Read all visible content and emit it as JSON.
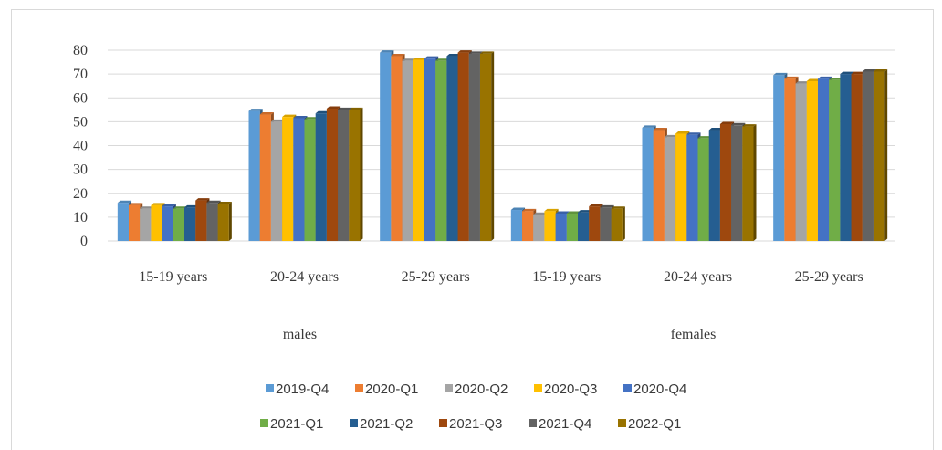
{
  "chart_data": {
    "type": "bar",
    "title": "",
    "xlabel": "",
    "ylabel": "",
    "ylim": [
      0,
      80
    ],
    "yticks": [
      0,
      10,
      20,
      30,
      40,
      50,
      60,
      70,
      80
    ],
    "grid": true,
    "legend_position": "bottom",
    "groups": [
      {
        "label": "males",
        "categories": [
          "15-19 years",
          "20-24 years",
          "25-29 years"
        ]
      },
      {
        "label": "females",
        "categories": [
          "15-19 years",
          "20-24 years",
          "25-29 years"
        ]
      }
    ],
    "series": [
      {
        "name": "2019-Q4",
        "color": "#5b9bd5",
        "values": [
          16,
          54.5,
          79,
          13,
          47.5,
          69.5
        ]
      },
      {
        "name": "2020-Q1",
        "color": "#ed7d31",
        "values": [
          15,
          53,
          77.5,
          12.5,
          46.5,
          68
        ]
      },
      {
        "name": "2020-Q2",
        "color": "#a5a5a5",
        "values": [
          13.5,
          50,
          75.5,
          11,
          43.5,
          66
        ]
      },
      {
        "name": "2020-Q3",
        "color": "#ffc000",
        "values": [
          15,
          52,
          76,
          12.5,
          45,
          67
        ]
      },
      {
        "name": "2020-Q4",
        "color": "#4472c4",
        "values": [
          14.5,
          51.5,
          76.5,
          11.5,
          44.5,
          68
        ]
      },
      {
        "name": "2021-Q1",
        "color": "#70ad47",
        "values": [
          13.5,
          51,
          75.5,
          11.5,
          43,
          67.5
        ]
      },
      {
        "name": "2021-Q2",
        "color": "#255e91",
        "values": [
          14,
          53.5,
          77.5,
          12,
          46.5,
          70
        ]
      },
      {
        "name": "2021-Q3",
        "color": "#9e480e",
        "values": [
          17,
          55.5,
          79,
          14.5,
          49,
          70
        ]
      },
      {
        "name": "2021-Q4",
        "color": "#636363",
        "values": [
          16,
          55,
          78.5,
          14,
          48.5,
          71
        ]
      },
      {
        "name": "2022-Q1",
        "color": "#997300",
        "values": [
          15.5,
          55,
          78.5,
          13.5,
          48,
          71
        ]
      }
    ]
  }
}
